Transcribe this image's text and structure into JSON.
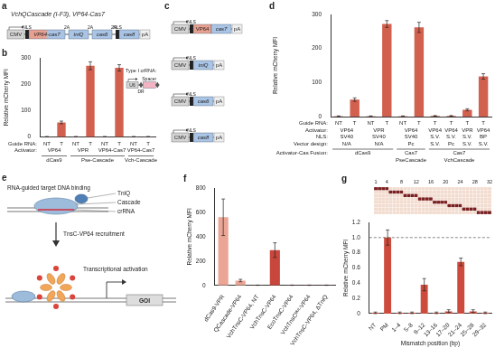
{
  "figure": {
    "a": {
      "letter": "a",
      "title": "VchQCascade (I-F3), VP64-Cas7",
      "construct": [
        {
          "text": "CMV",
          "kind": "promoter"
        },
        {
          "text": "NLS",
          "kind": "nls"
        },
        {
          "text": "VP64-cas7",
          "kind": "fusion"
        },
        {
          "text": "2A",
          "kind": "linker"
        },
        {
          "text": "tniQ",
          "kind": "gene"
        },
        {
          "text": "2A",
          "kind": "linker"
        },
        {
          "text": "cas6",
          "kind": "gene"
        },
        {
          "text": "2A",
          "kind": "linker"
        },
        {
          "text": "NLS",
          "kind": "nls"
        },
        {
          "text": "cas8",
          "kind": "gene"
        },
        {
          "text": "pA",
          "kind": "polyA"
        }
      ]
    },
    "c": {
      "letter": "c",
      "constructs": [
        [
          {
            "text": "CMV",
            "kind": "promoter"
          },
          {
            "text": "NLS",
            "kind": "nls"
          },
          {
            "text": "VP64",
            "kind": "activator"
          },
          {
            "text": "cas7",
            "kind": "gene"
          },
          {
            "text": "pA",
            "kind": "polyA"
          }
        ],
        [
          {
            "text": "CMV",
            "kind": "promoter"
          },
          {
            "text": "NLS",
            "kind": "nls"
          },
          {
            "text": "tniQ",
            "kind": "gene"
          },
          {
            "text": "pA",
            "kind": "polyA"
          }
        ],
        [
          {
            "text": "CMV",
            "kind": "promoter"
          },
          {
            "text": "NLS",
            "kind": "nls"
          },
          {
            "text": "cas6",
            "kind": "gene"
          },
          {
            "text": "pA",
            "kind": "polyA"
          }
        ],
        [
          {
            "text": "CMV",
            "kind": "promoter"
          },
          {
            "text": "NLS",
            "kind": "nls"
          },
          {
            "text": "cas8",
            "kind": "gene"
          },
          {
            "text": "pA",
            "kind": "polyA"
          }
        ]
      ]
    },
    "e": {
      "letter": "e",
      "labels": {
        "binding": "RNA-guided target DNA binding",
        "cascade": "Cascade",
        "crrna": "crRNA",
        "tniq": "TniQ",
        "recruitment": "TnsC-VP64 recruitment",
        "activation": "Transcriptional activation",
        "goi": "GOI"
      }
    }
  },
  "chart_data": [
    {
      "letter": "b",
      "type": "bar",
      "y_label": "Relative mCherry MFI",
      "category_label": "Guide RNA:",
      "categories": [
        "NT",
        "T",
        "NT",
        "T",
        "NT",
        "T",
        "NT",
        "T"
      ],
      "values": [
        1,
        55,
        1,
        270,
        1,
        262,
        1,
        1
      ],
      "errors": [
        0.5,
        5,
        0.5,
        15,
        0.5,
        12,
        0.5,
        0.5
      ],
      "color": "#d2604f",
      "ylim": [
        0,
        300
      ],
      "yticks": [
        0,
        100,
        200,
        300
      ],
      "grid": false,
      "rows": [
        {
          "label": "Activator:",
          "values": [
            "VP64",
            null,
            "VPR",
            null,
            "VP64-Cas7",
            null,
            "VP64-Cas7",
            null
          ]
        }
      ],
      "groups": {
        "values": [
          "dCas9",
          null,
          "Pse-Cascade",
          null,
          null,
          null,
          "Vch-Cascade",
          null
        ]
      },
      "inset": {
        "title": "Type I crRNA:",
        "elements": [
          {
            "text": "U6",
            "kind": "promoter"
          },
          {
            "text": "DR",
            "kind": "repeat"
          },
          {
            "text": "Spacer",
            "kind": "spacer"
          },
          {
            "text": null,
            "kind": "repeat"
          }
        ]
      }
    },
    {
      "letter": "d",
      "type": "bar",
      "y_label": "Relative mCherry MFI",
      "category_label": "Guide RNA:",
      "categories": [
        "NT",
        "T",
        "NT",
        "T",
        "NT",
        "T",
        "T",
        "T",
        "T",
        "T"
      ],
      "values": [
        1,
        50,
        1,
        272,
        1,
        262,
        2,
        2,
        20,
        118
      ],
      "errors": [
        1,
        5,
        1,
        10,
        1,
        15,
        1,
        1,
        3,
        8
      ],
      "color": "#d2604f",
      "ylim": [
        0,
        300
      ],
      "yticks": [
        0,
        100,
        200,
        300
      ],
      "grid": false,
      "rows": [
        {
          "label": "Activator:",
          "values": [
            "VP64",
            null,
            "VPR",
            null,
            "VP64",
            null,
            "VP64",
            "VP64",
            "VPR",
            "VP64"
          ]
        },
        {
          "label": "NLS:",
          "values": [
            "SV40",
            null,
            "SV40",
            null,
            "SV40",
            null,
            "S.V.",
            "S.V.",
            "S.V.",
            "BP"
          ]
        },
        {
          "label": "Vector design:",
          "values": [
            "N/A",
            null,
            "N/A",
            null,
            "Pc",
            null,
            "S.V.",
            "Pc",
            "S.V.",
            "S.V."
          ]
        }
      ],
      "groups": {
        "label": "Activator-Cas Fusion:",
        "values": [
          "dCas9",
          null,
          null,
          null,
          "Cas7 PseCascade",
          null,
          "Cas7 VchCascade",
          null,
          null,
          null
        ]
      }
    },
    {
      "letter": "f",
      "type": "bar",
      "y_label": "Relative mCherry MFI",
      "categories": [
        "dCas9-VPR",
        "QCascade-VP64",
        "VchTnsC-VP64, NT",
        "VchTnsC-VP64",
        "EcoTnsC-VP64",
        "VchTnsCᴹᵘᵗ-VP64",
        "VchTnsC-VP64, ΔTniQ"
      ],
      "values": [
        560,
        40,
        2,
        290,
        2,
        2,
        2
      ],
      "errors": [
        150,
        10,
        1,
        60,
        1,
        1,
        1
      ],
      "colors": [
        "#eba595",
        "#eba595",
        "#c7473c",
        "#c7473c",
        "#c7473c",
        "#c7473c",
        "#c7473c"
      ],
      "ylim": [
        0,
        800
      ],
      "yticks": [
        0,
        200,
        400,
        600,
        800
      ],
      "grid": false
    },
    {
      "letter": "g",
      "type": "bar",
      "y_label": "Relative mCherry MFI",
      "x_label": "Mismatch position (bp)",
      "categories": [
        "NT",
        "PM",
        "1–4",
        "5–8",
        "9–12",
        "13–16",
        "17–20",
        "21–24",
        "25–28",
        "29–32"
      ],
      "values": [
        0.01,
        1,
        0.01,
        0.01,
        0.38,
        0.01,
        0.03,
        0.68,
        0.03,
        0.01
      ],
      "errors": [
        0.01,
        0.1,
        0.01,
        0.01,
        0.08,
        0.01,
        0.02,
        0.05,
        0.02,
        0.01
      ],
      "color": "#cc4b3c",
      "ylim": [
        0,
        1.2
      ],
      "yticks": [
        0,
        0.2,
        0.4,
        0.6,
        0.8,
        {
          "value": 1,
          "label": "1.0"
        },
        1.2
      ],
      "grid": false,
      "reference_line": 1,
      "mismatch_grid": {
        "length": 32,
        "ticks": [
          1,
          4,
          8,
          12,
          16,
          20,
          24,
          28,
          32
        ],
        "windows": [
          [
            1,
            4
          ],
          [
            5,
            8
          ],
          [
            9,
            12
          ],
          [
            13,
            16
          ],
          [
            17,
            20
          ],
          [
            21,
            24
          ],
          [
            25,
            28
          ],
          [
            29,
            32
          ]
        ]
      }
    }
  ]
}
